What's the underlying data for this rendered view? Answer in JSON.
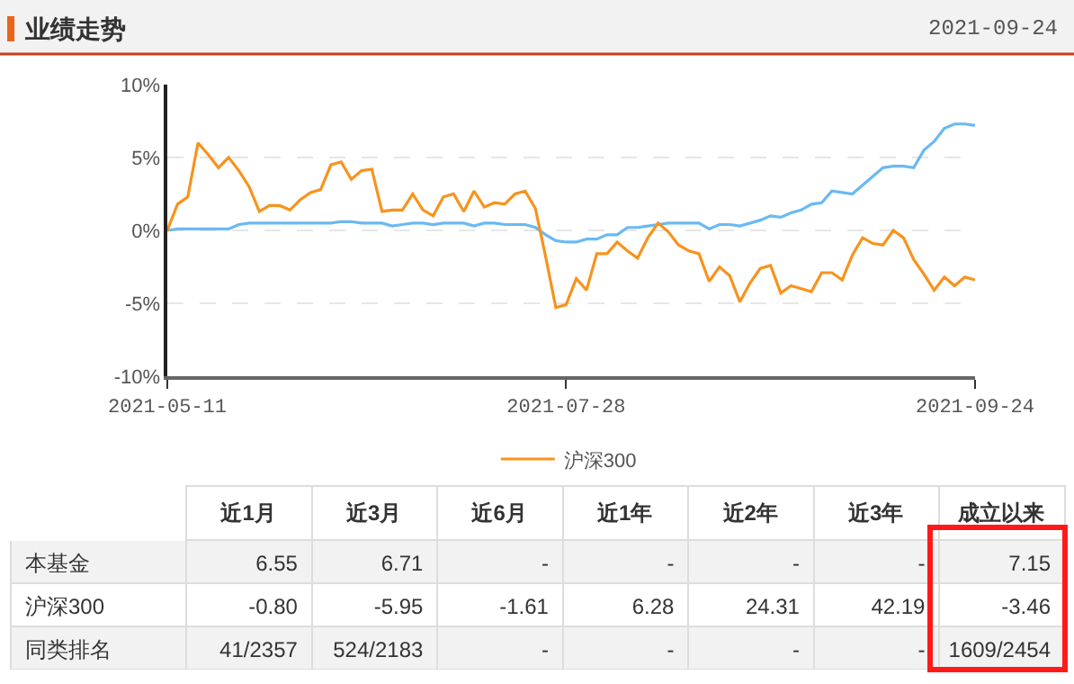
{
  "chart_data": [
    {
      "type": "line",
      "title": "业绩走势",
      "annotations": [
        "2021-09-24"
      ],
      "categories": [
        "2021-05-11",
        null,
        null,
        null,
        null,
        null,
        null,
        null,
        null,
        null,
        null,
        null,
        null,
        null,
        null,
        null,
        null,
        null,
        null,
        null,
        null,
        null,
        null,
        null,
        null,
        null,
        null,
        null,
        null,
        null,
        null,
        null,
        null,
        null,
        null,
        null,
        null,
        null,
        null,
        "2021-07-28",
        null,
        null,
        null,
        null,
        null,
        null,
        null,
        null,
        null,
        null,
        null,
        null,
        null,
        null,
        null,
        null,
        null,
        null,
        null,
        null,
        null,
        null,
        null,
        null,
        null,
        null,
        null,
        null,
        null,
        null,
        null,
        null,
        null,
        null,
        null,
        null,
        null,
        null,
        null,
        "2021-09-24"
      ],
      "series": [
        {
          "color": "#6ab9f2",
          "values": [
            0,
            0.1,
            0.1,
            0.1,
            0.1,
            0.1,
            0.1,
            0.4,
            0.5,
            0.5,
            0.5,
            0.5,
            0.5,
            0.5,
            0.5,
            0.5,
            0.5,
            0.6,
            0.6,
            0.5,
            0.5,
            0.5,
            0.3,
            0.4,
            0.5,
            0.5,
            0.4,
            0.5,
            0.5,
            0.5,
            0.3,
            0.5,
            0.5,
            0.4,
            0.4,
            0.4,
            0.2,
            -0.3,
            -0.7,
            -0.8,
            -0.8,
            -0.6,
            -0.6,
            -0.3,
            -0.3,
            0.2,
            0.2,
            0.3,
            0.4,
            0.5,
            0.5,
            0.5,
            0.5,
            0.1,
            0.4,
            0.4,
            0.3,
            0.5,
            0.7,
            1.0,
            0.9,
            1.2,
            1.4,
            1.8,
            1.9,
            2.7,
            2.6,
            2.5,
            3.1,
            3.7,
            4.3,
            4.4,
            4.4,
            4.3,
            5.5,
            6.1,
            7.0,
            7.3,
            7.3,
            7.2
          ]
        },
        {
          "name": "沪深300",
          "color": "#f7931e",
          "values": [
            0,
            1.8,
            2.3,
            6.0,
            5.2,
            4.3,
            5.0,
            4.1,
            3.0,
            1.3,
            1.7,
            1.7,
            1.4,
            2.1,
            2.6,
            2.8,
            4.5,
            4.7,
            3.5,
            4.1,
            4.2,
            1.3,
            1.4,
            1.4,
            2.5,
            1.4,
            1.0,
            2.3,
            2.5,
            1.3,
            2.7,
            1.6,
            1.9,
            1.8,
            2.5,
            2.7,
            1.5,
            -1.8,
            -5.3,
            -5.1,
            -3.3,
            -4.1,
            -1.6,
            -1.6,
            -0.8,
            -1.4,
            -1.9,
            -0.5,
            0.5,
            -0.1,
            -1.0,
            -1.4,
            -1.6,
            -3.5,
            -2.5,
            -3.1,
            -4.9,
            -3.6,
            -2.6,
            -2.4,
            -4.3,
            -3.8,
            -4.0,
            -4.2,
            -2.9,
            -2.9,
            -3.4,
            -1.7,
            -0.5,
            -0.9,
            -1.0,
            0.0,
            -0.5,
            -2.0,
            -3.0,
            -4.1,
            -3.2,
            -3.8,
            -3.2,
            -3.4
          ]
        }
      ],
      "ylim": [
        -10,
        10
      ],
      "yticks": [
        {
          "value": -10,
          "label": "-10%"
        },
        {
          "value": -5,
          "label": "-5%"
        },
        {
          "value": 0,
          "label": "0%"
        },
        {
          "value": 5,
          "label": "5%"
        },
        {
          "value": 10,
          "label": "10%"
        }
      ],
      "grid": "y",
      "legend": "bottom",
      "marker": "none",
      "line_style": "solid"
    },
    {
      "type": "other",
      "categories": [
        "近1月",
        "近3月",
        "近6月",
        "近1年",
        "近2年",
        "近3年",
        "成立以来"
      ],
      "y_categories": [
        "本基金",
        "沪深300",
        "同类排名"
      ],
      "cell_labels": [
        [
          "6.55",
          "6.71",
          "-",
          "-",
          "-",
          "-",
          "7.15"
        ],
        [
          "-0.80",
          "-5.95",
          "-1.61",
          "6.28",
          "24.31",
          "42.19",
          "-3.46"
        ],
        [
          "41/2357",
          "524/2183",
          "-",
          "-",
          "-",
          "-",
          "1609/2454"
        ]
      ]
    }
  ]
}
